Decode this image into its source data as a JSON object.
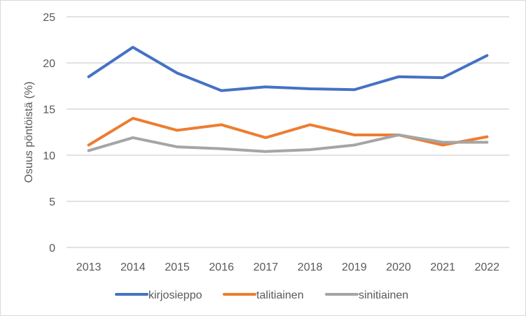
{
  "chart_data": {
    "type": "line",
    "title": "",
    "xlabel": "",
    "ylabel": "Osuus pöntöistä (%)",
    "categories": [
      "2013",
      "2014",
      "2015",
      "2016",
      "2017",
      "2018",
      "2019",
      "2020",
      "2021",
      "2022"
    ],
    "ylim": [
      0,
      25
    ],
    "yticks": [
      0,
      5,
      10,
      15,
      20,
      25
    ],
    "grid": true,
    "legend_position": "bottom",
    "series": [
      {
        "name": "kirjosieppo",
        "color": "#4472C4",
        "values": [
          18.5,
          21.7,
          18.9,
          17.0,
          17.4,
          17.2,
          17.1,
          18.5,
          18.4,
          20.8
        ]
      },
      {
        "name": "talitiainen",
        "color": "#ED7D31",
        "values": [
          11.1,
          14.0,
          12.7,
          13.3,
          11.9,
          13.3,
          12.2,
          12.2,
          11.1,
          12.0
        ]
      },
      {
        "name": "sinitiainen",
        "color": "#A5A5A5",
        "values": [
          10.5,
          11.9,
          10.9,
          10.7,
          10.4,
          10.6,
          11.1,
          12.2,
          11.4,
          11.4
        ]
      }
    ]
  }
}
